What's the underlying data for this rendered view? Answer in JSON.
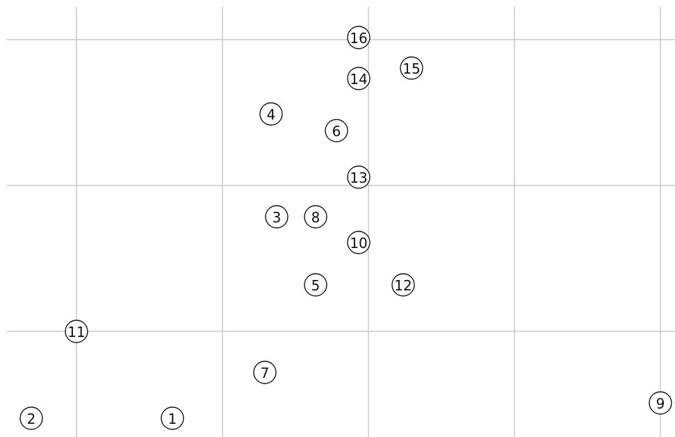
{
  "nodes": [
    {
      "label": "1"
    },
    {
      "label": "2"
    },
    {
      "label": "3"
    },
    {
      "label": "4"
    },
    {
      "label": "5"
    },
    {
      "label": "6"
    },
    {
      "label": "7"
    },
    {
      "label": "8"
    },
    {
      "label": "9"
    },
    {
      "label": "10"
    },
    {
      "label": "11"
    },
    {
      "label": "12"
    },
    {
      "label": "13"
    },
    {
      "label": "14"
    },
    {
      "label": "15"
    },
    {
      "label": "16"
    }
  ]
}
